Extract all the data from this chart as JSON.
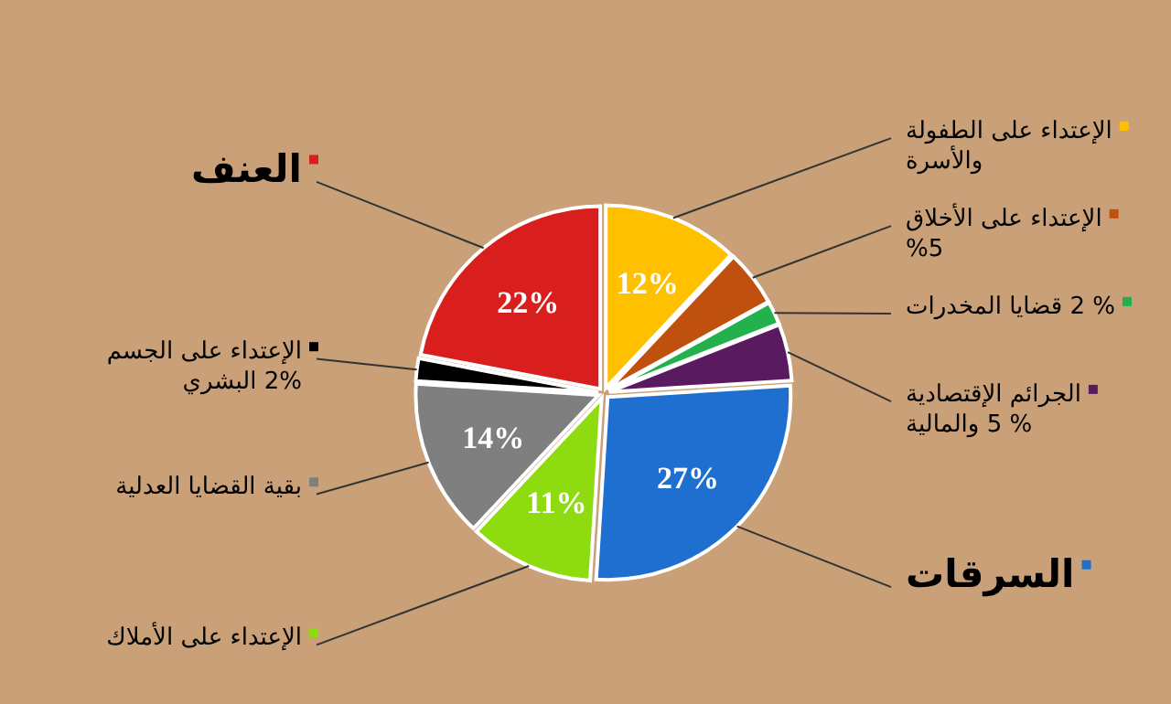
{
  "chart_data": {
    "type": "pie",
    "categories": [
      "الإعتداء على الطفولة\nوالأسرة",
      "الإعتداء على الأخلاق\n%5",
      "قضايا المخدرات 2 %",
      "الجرائم الإقتصادية\nوالمالية 5 %",
      "السرقات",
      "الإعتداء على الأملاك",
      "بقية القضايا العدلية",
      "الإعتداء على الجسم\nالبشري 2%",
      "العنف"
    ],
    "values": [
      12,
      5,
      2,
      5,
      27,
      11,
      14,
      2,
      22
    ],
    "colors": [
      "#ffc000",
      "#c0500e",
      "#22b14c",
      "#5a1a60",
      "#1f6fd0",
      "#8edc10",
      "#7f7f7f",
      "#000000",
      "#d91e1e"
    ],
    "legend": "right",
    "value_labels": [
      "12%",
      null,
      null,
      null,
      "27%",
      "11%",
      "14%",
      null,
      "22%"
    ]
  }
}
